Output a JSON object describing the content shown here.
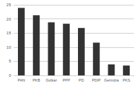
{
  "chart_data": {
    "type": "bar",
    "categories": [
      "PAN",
      "PKB",
      "Golkar",
      "PPP",
      "PD",
      "PDIP",
      "Gerindra",
      "PKS"
    ],
    "values": [
      23.9,
      21.3,
      18.8,
      18.3,
      16.8,
      11.6,
      3.9,
      3.5
    ],
    "color": "#333333",
    "ylim": [
      0,
      25
    ],
    "yticks": [
      0,
      5,
      10,
      15,
      20,
      25
    ],
    "grid": true
  }
}
